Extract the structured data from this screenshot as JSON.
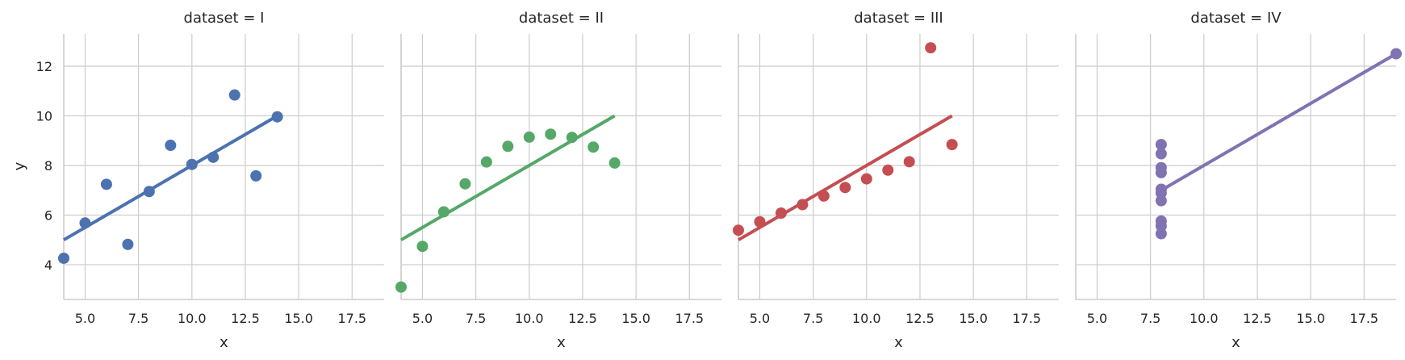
{
  "chart_data": [
    {
      "type": "scatter",
      "title": "dataset = I",
      "xlabel": "x",
      "ylabel": "y",
      "xlim": [
        4,
        19
      ],
      "ylim": [
        2.6,
        13.3
      ],
      "xticks": [
        "5.0",
        "7.5",
        "10.0",
        "12.5",
        "15.0",
        "17.5"
      ],
      "yticks": [
        "4",
        "6",
        "8",
        "10",
        "12"
      ],
      "grid": true,
      "color": "#4c72b0",
      "points": {
        "x": [
          10,
          8,
          13,
          9,
          11,
          14,
          6,
          4,
          12,
          7,
          5
        ],
        "y": [
          8.04,
          6.95,
          7.58,
          8.81,
          8.33,
          9.96,
          7.24,
          4.26,
          10.84,
          4.82,
          5.68
        ]
      },
      "fit_line": {
        "x": [
          4,
          14
        ],
        "y": [
          5.0,
          10.0
        ]
      }
    },
    {
      "type": "scatter",
      "title": "dataset = II",
      "xlabel": "x",
      "ylabel": "",
      "xlim": [
        4,
        19
      ],
      "ylim": [
        2.6,
        13.3
      ],
      "xticks": [
        "5.0",
        "7.5",
        "10.0",
        "12.5",
        "15.0",
        "17.5"
      ],
      "yticks": [],
      "grid": true,
      "color": "#55a868",
      "points": {
        "x": [
          10,
          8,
          13,
          9,
          11,
          14,
          6,
          4,
          12,
          7,
          5
        ],
        "y": [
          9.14,
          8.14,
          8.74,
          8.77,
          9.26,
          8.1,
          6.13,
          3.1,
          9.13,
          7.26,
          4.74
        ]
      },
      "fit_line": {
        "x": [
          4,
          14
        ],
        "y": [
          5.0,
          10.0
        ]
      }
    },
    {
      "type": "scatter",
      "title": "dataset = III",
      "xlabel": "x",
      "ylabel": "",
      "xlim": [
        4,
        19
      ],
      "ylim": [
        2.6,
        13.3
      ],
      "xticks": [
        "5.0",
        "7.5",
        "10.0",
        "12.5",
        "15.0",
        "17.5"
      ],
      "yticks": [],
      "grid": true,
      "color": "#c44e52",
      "points": {
        "x": [
          10,
          8,
          13,
          9,
          11,
          14,
          6,
          4,
          12,
          7,
          5
        ],
        "y": [
          7.46,
          6.77,
          12.74,
          7.11,
          7.81,
          8.84,
          6.08,
          5.39,
          8.15,
          6.42,
          5.73
        ]
      },
      "fit_line": {
        "x": [
          4,
          14
        ],
        "y": [
          5.0,
          10.0
        ]
      }
    },
    {
      "type": "scatter",
      "title": "dataset = IV",
      "xlabel": "x",
      "ylabel": "",
      "xlim": [
        4,
        19
      ],
      "ylim": [
        2.6,
        13.3
      ],
      "xticks": [
        "5.0",
        "7.5",
        "10.0",
        "12.5",
        "15.0",
        "17.5"
      ],
      "yticks": [],
      "grid": true,
      "color": "#8172b2",
      "points": {
        "x": [
          8,
          8,
          8,
          8,
          8,
          8,
          8,
          19,
          8,
          8,
          8
        ],
        "y": [
          6.58,
          5.76,
          7.71,
          8.84,
          8.47,
          7.04,
          5.25,
          12.5,
          5.56,
          7.91,
          6.89
        ]
      },
      "fit_line": {
        "x": [
          8,
          19
        ],
        "y": [
          7.0,
          12.5
        ]
      }
    }
  ]
}
